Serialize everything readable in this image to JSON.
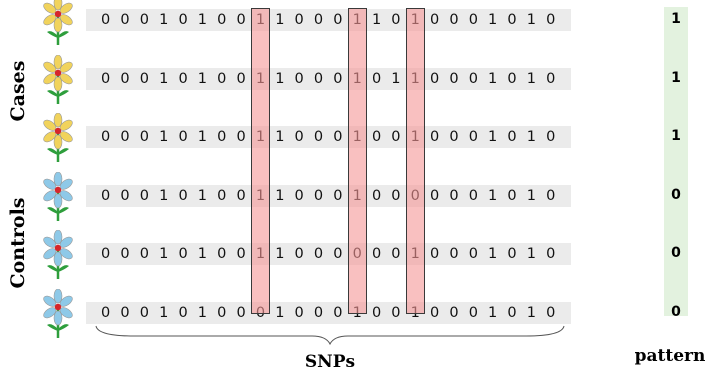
{
  "group_labels": {
    "cases": "Cases",
    "controls": "Controls"
  },
  "rows": [
    {
      "group": "case",
      "bits": [
        "0",
        "0",
        "0",
        "1",
        "0",
        "1",
        "0",
        "0",
        "1",
        "1",
        "0",
        "0",
        "0",
        "1",
        "1",
        "0",
        "1",
        "0",
        "0",
        "0",
        "1",
        "0",
        "1",
        "0"
      ],
      "pattern": "1"
    },
    {
      "group": "case",
      "bits": [
        "0",
        "0",
        "0",
        "1",
        "0",
        "1",
        "0",
        "0",
        "1",
        "1",
        "0",
        "0",
        "0",
        "1",
        "0",
        "1",
        "1",
        "0",
        "0",
        "0",
        "1",
        "0",
        "1",
        "0"
      ],
      "pattern": "1"
    },
    {
      "group": "case",
      "bits": [
        "0",
        "0",
        "0",
        "1",
        "0",
        "1",
        "0",
        "0",
        "1",
        "1",
        "0",
        "0",
        "0",
        "1",
        "0",
        "0",
        "1",
        "0",
        "0",
        "0",
        "1",
        "0",
        "1",
        "0"
      ],
      "pattern": "1"
    },
    {
      "group": "control",
      "bits": [
        "0",
        "0",
        "0",
        "1",
        "0",
        "1",
        "0",
        "0",
        "1",
        "1",
        "0",
        "0",
        "0",
        "1",
        "0",
        "0",
        "0",
        "0",
        "0",
        "0",
        "1",
        "0",
        "1",
        "0"
      ],
      "pattern": "0"
    },
    {
      "group": "control",
      "bits": [
        "0",
        "0",
        "0",
        "1",
        "0",
        "1",
        "0",
        "0",
        "1",
        "1",
        "0",
        "0",
        "0",
        "0",
        "0",
        "0",
        "1",
        "0",
        "0",
        "0",
        "1",
        "0",
        "1",
        "0"
      ],
      "pattern": "0"
    },
    {
      "group": "control",
      "bits": [
        "0",
        "0",
        "0",
        "1",
        "0",
        "1",
        "0",
        "0",
        "0",
        "1",
        "0",
        "0",
        "0",
        "1",
        "0",
        "0",
        "1",
        "0",
        "0",
        "0",
        "1",
        "0",
        "1",
        "0"
      ],
      "pattern": "0"
    }
  ],
  "highlighted_columns": [
    8,
    13,
    16
  ],
  "colors": {
    "case_petal": "#f1d35c",
    "control_petal": "#8ec9e8",
    "flower_center": "#d6262b",
    "stem": "#2e9e3c",
    "highlight": "#f59696",
    "pattern_bg": "#e3f2df",
    "row_bg": "#ebebeb"
  },
  "axis_labels": {
    "snps": "SNPs",
    "pattern": "pattern"
  }
}
